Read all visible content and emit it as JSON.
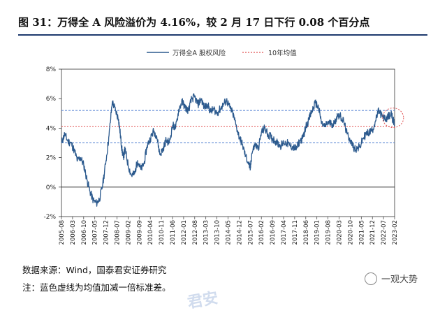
{
  "figure": {
    "title": "图 31：万得全 A 风险溢价为 4.16%，较 2 月 17 日下行 0.08 个百分点",
    "source": "数据来源：Wind，国泰君安证券研究",
    "note": "注：蓝色虚线为均值加减一倍标准差。",
    "watermark_text": "一观大势",
    "faint_mark": "君安"
  },
  "chart_data": {
    "type": "line",
    "title": "",
    "xlabel": "",
    "ylabel": "",
    "ylim": [
      -2,
      8
    ],
    "y_ticks": [
      -2,
      0,
      2,
      4,
      6,
      8
    ],
    "y_tick_labels": [
      "-2%",
      "0%",
      "2%",
      "4%",
      "6%",
      "8%"
    ],
    "x_range": [
      "2005-08",
      "2023-02"
    ],
    "x_tick_labels": [
      "2005-08",
      "2006-03",
      "2006-10",
      "2007-05",
      "2007-12",
      "2008-07",
      "2009-02",
      "2009-09",
      "2010-04",
      "2010-11",
      "2011-06",
      "2012-01",
      "2012-08",
      "2013-03",
      "2013-10",
      "2014-05",
      "2014-12",
      "2015-07",
      "2016-02",
      "2016-09",
      "2017-04",
      "2017-11",
      "2018-06",
      "2019-01",
      "2019-08",
      "2020-03",
      "2020-10",
      "2021-05",
      "2021-12",
      "2022-07",
      "2023-02"
    ],
    "legend": [
      "万得全A 股权风险",
      "10年均值"
    ],
    "colors": {
      "series": "#2c5a8e",
      "mean": "#e05252",
      "band": "#4a7bd0",
      "highlight": "#e05252"
    },
    "series": [
      {
        "name": "万得全A 股权风险",
        "x": [
          2005.58,
          2005.75,
          2005.92,
          2006.08,
          2006.25,
          2006.42,
          2006.58,
          2006.75,
          2006.92,
          2007.08,
          2007.25,
          2007.42,
          2007.58,
          2007.75,
          2007.92,
          2008.08,
          2008.25,
          2008.42,
          2008.58,
          2008.67,
          2008.75,
          2008.83,
          2008.92,
          2009.08,
          2009.25,
          2009.42,
          2009.58,
          2009.75,
          2009.92,
          2010.08,
          2010.25,
          2010.42,
          2010.58,
          2010.75,
          2010.92,
          2011.08,
          2011.25,
          2011.42,
          2011.58,
          2011.75,
          2011.92,
          2012.08,
          2012.25,
          2012.42,
          2012.58,
          2012.75,
          2012.92,
          2013.08,
          2013.25,
          2013.42,
          2013.58,
          2013.75,
          2013.92,
          2014.08,
          2014.25,
          2014.42,
          2014.58,
          2014.75,
          2014.92,
          2015.08,
          2015.25,
          2015.42,
          2015.5,
          2015.58,
          2015.75,
          2015.92,
          2016.08,
          2016.25,
          2016.42,
          2016.58,
          2016.75,
          2016.92,
          2017.08,
          2017.25,
          2017.42,
          2017.58,
          2017.75,
          2017.92,
          2018.08,
          2018.25,
          2018.42,
          2018.58,
          2018.75,
          2018.92,
          2019.08,
          2019.25,
          2019.42,
          2019.58,
          2019.75,
          2019.92,
          2020.08,
          2020.25,
          2020.42,
          2020.58,
          2020.75,
          2020.92,
          2021.08,
          2021.25,
          2021.42,
          2021.58,
          2021.75,
          2021.92,
          2022.08,
          2022.25,
          2022.42,
          2022.58,
          2022.75,
          2022.92,
          2023.08
        ],
        "values": [
          3.0,
          3.6,
          3.1,
          3.0,
          2.5,
          1.8,
          2.0,
          1.5,
          0.5,
          -0.3,
          -0.9,
          -1.1,
          -0.8,
          0.2,
          1.8,
          3.5,
          5.8,
          5.2,
          4.6,
          3.6,
          2.6,
          2.0,
          2.6,
          1.5,
          0.8,
          0.9,
          1.8,
          1.2,
          1.6,
          2.8,
          3.3,
          3.8,
          3.5,
          2.2,
          2.6,
          3.2,
          3.0,
          4.2,
          4.0,
          5.3,
          5.8,
          5.4,
          5.2,
          6.0,
          6.1,
          5.6,
          6.0,
          5.4,
          5.6,
          5.1,
          5.3,
          5.0,
          5.3,
          5.6,
          5.9,
          5.4,
          5.0,
          4.2,
          3.4,
          2.9,
          2.1,
          1.6,
          1.2,
          2.3,
          2.9,
          2.6,
          3.7,
          4.0,
          3.6,
          3.4,
          3.2,
          3.0,
          2.8,
          3.0,
          3.0,
          2.8,
          2.7,
          2.6,
          3.1,
          3.3,
          4.1,
          4.6,
          5.2,
          5.7,
          5.4,
          4.3,
          4.1,
          4.4,
          4.3,
          4.3,
          4.9,
          4.8,
          4.4,
          3.6,
          3.2,
          2.7,
          2.6,
          2.7,
          3.3,
          3.6,
          3.7,
          3.9,
          4.5,
          5.2,
          4.8,
          4.6,
          4.8,
          4.9,
          4.2
        ]
      }
    ],
    "reference_lines": [
      {
        "name": "10年均值",
        "value": 4.1,
        "style": "red dotted"
      },
      {
        "name": "均值+1倍标准差",
        "value": 5.2,
        "style": "blue dashed"
      },
      {
        "name": "均值-1倍标准差",
        "value": 3.0,
        "style": "blue dashed"
      }
    ],
    "annotations": [
      {
        "type": "dashed circle",
        "x": 2023.0,
        "y": 4.7
      }
    ]
  }
}
